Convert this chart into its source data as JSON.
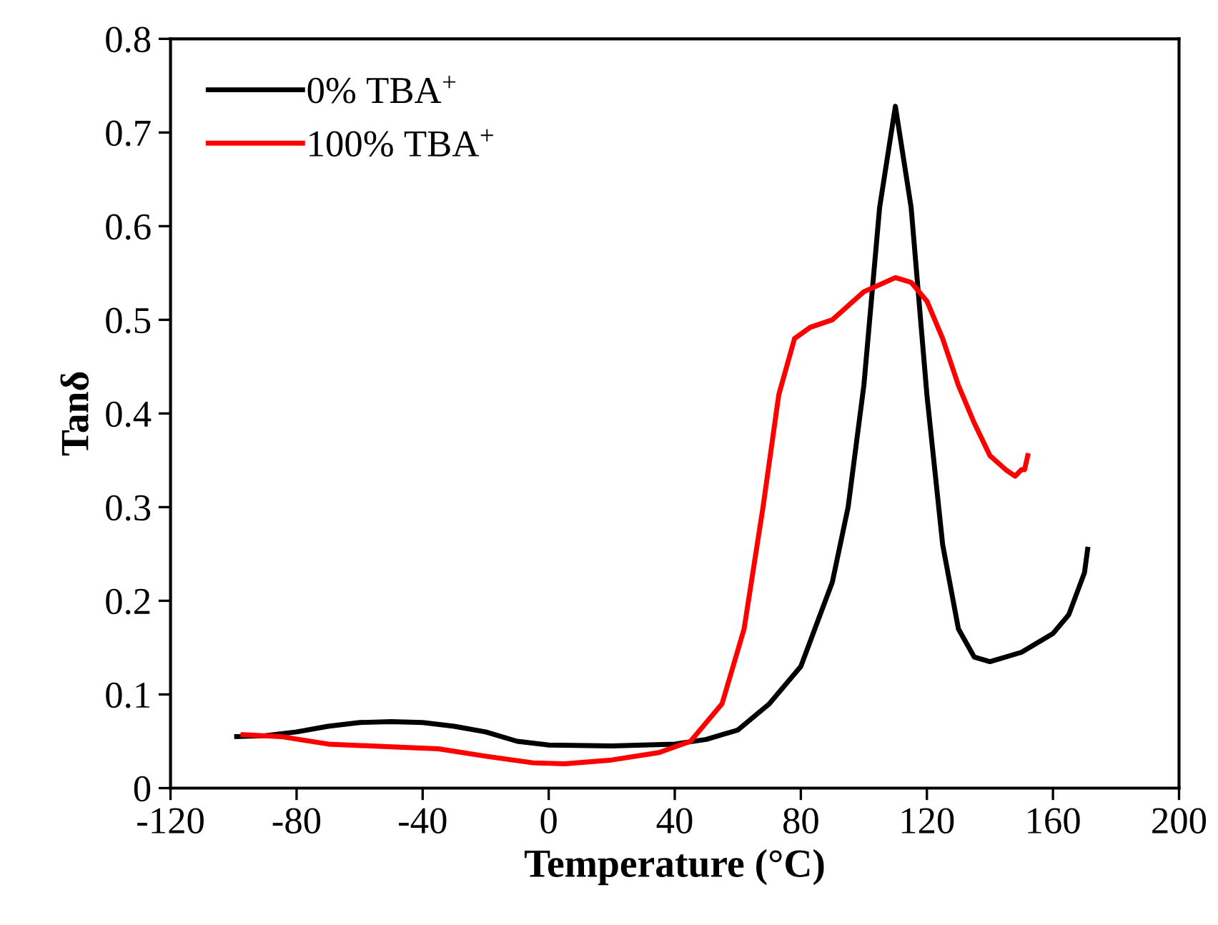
{
  "chart_data": {
    "type": "line",
    "xlabel": "Temperature (°C)",
    "ylabel": "Tanδ",
    "xlim": [
      -120,
      200
    ],
    "xticks": [
      -120,
      -80,
      -40,
      0,
      40,
      80,
      120,
      160,
      200
    ],
    "ylim": [
      0,
      0.8
    ],
    "yticks": [
      0,
      0.1,
      0.2,
      0.3,
      0.4,
      0.5,
      0.6,
      0.7,
      0.8
    ],
    "grid": false,
    "legend": "top left",
    "marker": "none",
    "line_style": "solid",
    "series": [
      {
        "name": "0% TBA$^{+}$",
        "color": "#000000",
        "x": [
          -99,
          -90,
          -80,
          -70,
          -60,
          -50,
          -40,
          -30,
          -20,
          -10,
          0,
          20,
          40,
          50,
          60,
          70,
          80,
          90,
          95,
          100,
          105,
          110,
          115,
          120,
          125,
          130,
          135,
          140,
          150,
          160,
          165,
          170,
          171
        ],
        "values": [
          0.055,
          0.056,
          0.06,
          0.066,
          0.07,
          0.071,
          0.07,
          0.066,
          0.06,
          0.05,
          0.046,
          0.045,
          0.047,
          0.052,
          0.062,
          0.09,
          0.13,
          0.22,
          0.3,
          0.43,
          0.62,
          0.728,
          0.62,
          0.42,
          0.26,
          0.17,
          0.14,
          0.135,
          0.145,
          0.165,
          0.185,
          0.23,
          0.255
        ]
      },
      {
        "name": "100% TBA$^{+}$",
        "color": "#ff0000",
        "x": [
          -97,
          -85,
          -70,
          -50,
          -35,
          -20,
          -5,
          5,
          20,
          35,
          45,
          55,
          62,
          68,
          73,
          78,
          83,
          90,
          100,
          110,
          115,
          120,
          125,
          130,
          135,
          140,
          145,
          148,
          150,
          151,
          152
        ],
        "values": [
          0.057,
          0.055,
          0.047,
          0.044,
          0.042,
          0.034,
          0.027,
          0.026,
          0.03,
          0.038,
          0.05,
          0.09,
          0.17,
          0.3,
          0.42,
          0.48,
          0.492,
          0.5,
          0.53,
          0.545,
          0.54,
          0.52,
          0.48,
          0.43,
          0.39,
          0.355,
          0.34,
          0.333,
          0.34,
          0.34,
          0.355
        ]
      }
    ]
  }
}
